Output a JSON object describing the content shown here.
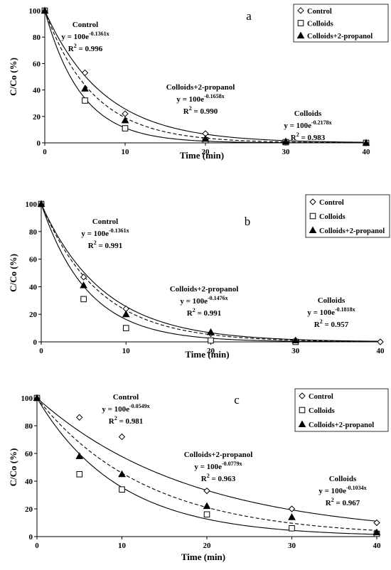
{
  "chart_data": [
    {
      "type": "scatter",
      "panel": "a",
      "xlabel": "Time (min)",
      "ylabel": "C/Co (%)",
      "xlim": [
        0,
        40
      ],
      "ylim": [
        0,
        100
      ],
      "xticks": [
        "0",
        "10",
        "20",
        "30",
        "40"
      ],
      "yticks": [
        "0",
        "20",
        "40",
        "60",
        "80",
        "100"
      ],
      "legend_position": "top-right",
      "series": [
        {
          "name": "Control",
          "marker": "diamond",
          "x": [
            0,
            5,
            10,
            20,
            30,
            40
          ],
          "y": [
            100,
            53,
            22,
            7,
            1,
            0
          ]
        },
        {
          "name": "Colloids",
          "marker": "square",
          "x": [
            0,
            5,
            10,
            20,
            30,
            40
          ],
          "y": [
            100,
            32,
            11,
            2,
            0.5,
            0
          ]
        },
        {
          "name": "Colloids+2-propanol",
          "marker": "triangle",
          "x": [
            0,
            5,
            10,
            20,
            30,
            40
          ],
          "y": [
            100,
            41,
            17,
            3,
            1,
            0
          ]
        }
      ],
      "fits": [
        {
          "series": "Control",
          "k": 0.1361,
          "style": "solid",
          "labels": {
            "name": "Control",
            "eq_prefix": "y = 100e",
            "eq_exp": "-0.1361x",
            "r2_prefix": "R",
            "r2_sup": "2",
            "r2_value": " = 0.996"
          }
        },
        {
          "series": "Colloids+2-propanol",
          "k": 0.1658,
          "style": "dashed",
          "labels": {
            "name": "Colloids+2-propanol",
            "eq_prefix": "y = 100e",
            "eq_exp": "-0.1658x",
            "r2_prefix": "R",
            "r2_sup": "2",
            "r2_value": " = 0.990"
          }
        },
        {
          "series": "Colloids",
          "k": 0.2178,
          "style": "solid",
          "labels": {
            "name": "Colloids",
            "eq_prefix": "y = 100e",
            "eq_exp": "-0.2178x",
            "r2_prefix": "R",
            "r2_sup": "2",
            "r2_value": " = 0.983"
          }
        }
      ]
    },
    {
      "type": "scatter",
      "panel": "b",
      "xlabel": "Time (min)",
      "ylabel": "C/Co (%)",
      "xlim": [
        0,
        40
      ],
      "ylim": [
        0,
        100
      ],
      "xticks": [
        "0",
        "10",
        "20",
        "30",
        "40"
      ],
      "yticks": [
        "0",
        "20",
        "40",
        "60",
        "80",
        "100"
      ],
      "legend_position": "top-right",
      "series": [
        {
          "name": "Control",
          "marker": "diamond",
          "x": [
            0,
            5,
            10,
            20,
            30,
            40
          ],
          "y": [
            100,
            47,
            24,
            6,
            1,
            0
          ]
        },
        {
          "name": "Colloids",
          "marker": "square",
          "x": [
            0,
            5,
            10,
            20,
            30
          ],
          "y": [
            100,
            31,
            10,
            1,
            0
          ]
        },
        {
          "name": "Colloids+2-propanol",
          "marker": "triangle",
          "x": [
            0,
            5,
            10,
            20,
            30
          ],
          "y": [
            100,
            41,
            20,
            7,
            1
          ]
        }
      ],
      "fits": [
        {
          "series": "Control",
          "k": 0.1361,
          "style": "solid",
          "labels": {
            "name": "Control",
            "eq_prefix": "y = 100e",
            "eq_exp": "-0.1361x",
            "r2_prefix": "R",
            "r2_sup": "2",
            "r2_value": " = 0.991"
          }
        },
        {
          "series": "Colloids+2-propanol",
          "k": 0.1476,
          "style": "dashed",
          "labels": {
            "name": "Colloids+2-propanol",
            "eq_prefix": "y = 100e",
            "eq_exp": "-0.1476x",
            "r2_prefix": "R",
            "r2_sup": "2",
            "r2_value": " = 0.991"
          }
        },
        {
          "series": "Colloids",
          "k": 0.1818,
          "style": "solid",
          "labels": {
            "name": "Colloids",
            "eq_prefix": "y = 100e",
            "eq_exp": "-0.1818x",
            "r2_prefix": "R",
            "r2_sup": "2",
            "r2_value": " = 0.957"
          }
        }
      ]
    },
    {
      "type": "scatter",
      "panel": "c",
      "xlabel": "Time (min)",
      "ylabel": "C/Co (%)",
      "xlim": [
        0,
        40
      ],
      "ylim": [
        0,
        100
      ],
      "xticks": [
        "0",
        "10",
        "20",
        "30",
        "40"
      ],
      "yticks": [
        "0",
        "20",
        "40",
        "60",
        "80",
        "100"
      ],
      "legend_position": "top-right",
      "series": [
        {
          "name": "Control",
          "marker": "diamond",
          "x": [
            0,
            5,
            10,
            20,
            30,
            40
          ],
          "y": [
            100,
            86,
            72,
            33,
            20,
            10
          ]
        },
        {
          "name": "Colloids",
          "marker": "square",
          "x": [
            0,
            5,
            10,
            20,
            30,
            40
          ],
          "y": [
            100,
            45,
            34,
            16,
            6,
            2
          ]
        },
        {
          "name": "Colloids+2-propanol",
          "marker": "triangle",
          "x": [
            0,
            5,
            10,
            20,
            30,
            40
          ],
          "y": [
            100,
            58,
            45,
            22,
            14,
            3
          ]
        }
      ],
      "fits": [
        {
          "series": "Control",
          "k": 0.0549,
          "style": "solid",
          "labels": {
            "name": "Control",
            "eq_prefix": "y = 100e",
            "eq_exp": "-0.0549x",
            "r2_prefix": "R",
            "r2_sup": "2",
            "r2_value": " = 0.981"
          }
        },
        {
          "series": "Colloids+2-propanol",
          "k": 0.0779,
          "style": "dashed",
          "labels": {
            "name": "Colloids+2-propanol",
            "eq_prefix": "y = 100e",
            "eq_exp": "-0.0779x",
            "r2_prefix": "R",
            "r2_sup": "2",
            "r2_value": " = 0.963"
          }
        },
        {
          "series": "Colloids",
          "k": 0.1034,
          "style": "solid",
          "labels": {
            "name": "Colloids",
            "eq_prefix": "y = 100e",
            "eq_exp": "-0.1034x",
            "r2_prefix": "R",
            "r2_sup": "2",
            "r2_value": " = 0.967"
          }
        }
      ]
    }
  ]
}
